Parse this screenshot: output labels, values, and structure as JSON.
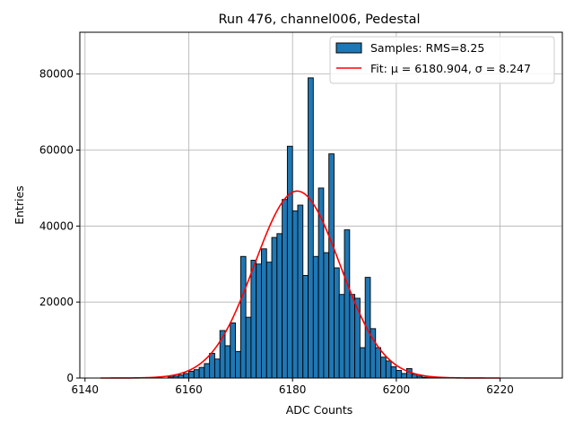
{
  "chart_data": {
    "type": "bar",
    "title": "Run 476, channel006, Pedestal",
    "xlabel": "ADC Counts",
    "ylabel": "Entries",
    "xlim": [
      6139,
      6232
    ],
    "ylim": [
      0,
      91000
    ],
    "x_ticks": [
      6140,
      6160,
      6180,
      6200,
      6220
    ],
    "y_ticks": [
      0,
      20000,
      40000,
      60000,
      80000
    ],
    "grid": true,
    "legend_position": "top-right",
    "histogram": {
      "name": "Samples: RMS=8.25",
      "color": "#1f77b4",
      "bin_start": 6156,
      "bin_width": 1,
      "values": [
        300,
        500,
        800,
        1200,
        1800,
        2200,
        2800,
        3800,
        6500,
        5000,
        12500,
        8500,
        14500,
        7000,
        32000,
        16000,
        31000,
        30000,
        34000,
        30500,
        37000,
        38000,
        47000,
        61000,
        44000,
        45500,
        27000,
        79000,
        32000,
        50000,
        33000,
        59000,
        29000,
        22000,
        39000,
        22000,
        21000,
        8000,
        26500,
        13000,
        8000,
        5500,
        4500,
        3000,
        2000,
        1200,
        2500,
        1000,
        500,
        200,
        100
      ]
    },
    "fit": {
      "name": "Fit: μ = 6180.904, σ = 8.247",
      "color": "#ff0000",
      "mu": 6180.904,
      "sigma": 8.247,
      "amplitude": 49200,
      "x_range": [
        6143,
        6220
      ]
    }
  }
}
